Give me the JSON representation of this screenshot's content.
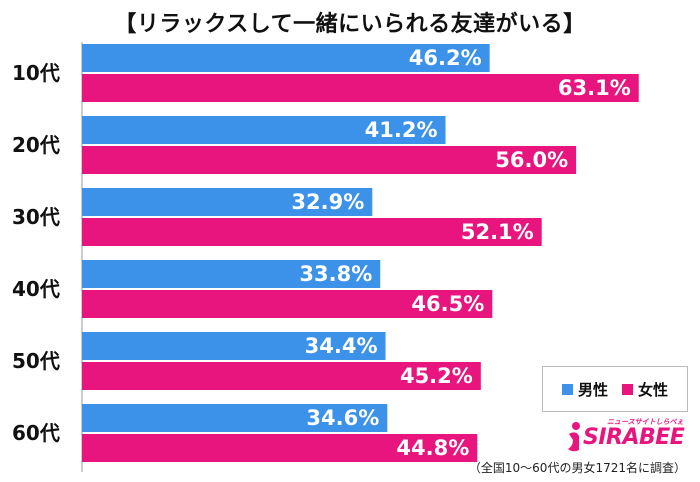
{
  "chart_data": {
    "type": "bar",
    "orientation": "horizontal",
    "title": "【リラックスして一緒にいられる友達がいる】",
    "categories": [
      "10代",
      "20代",
      "30代",
      "40代",
      "50代",
      "60代"
    ],
    "series": [
      {
        "name": "男性",
        "color": "#3b92e8",
        "values": [
          46.2,
          41.2,
          32.9,
          33.8,
          34.4,
          34.6
        ],
        "labels": [
          "46.2%",
          "41.2%",
          "32.9%",
          "33.8%",
          "34.4%",
          "34.6%"
        ]
      },
      {
        "name": "女性",
        "color": "#e8157f",
        "values": [
          63.1,
          56.0,
          52.1,
          46.5,
          45.2,
          44.8
        ],
        "labels": [
          "63.1%",
          "56.0%",
          "52.1%",
          "46.5%",
          "45.2%",
          "44.8%"
        ]
      }
    ],
    "xlim": [
      0,
      68
    ],
    "grid": false,
    "legend_position": "bottom-right"
  },
  "logo": {
    "text": "SIRABEE",
    "subtext": "ニュースサイトしらべぇ"
  },
  "footnote": "（全国10～60代の男女1721名に調査）"
}
